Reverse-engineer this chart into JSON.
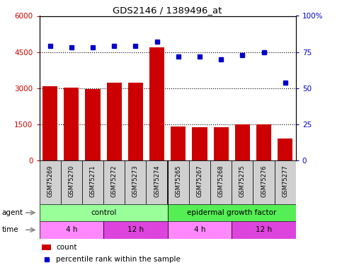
{
  "title": "GDS2146 / 1389496_at",
  "samples": [
    "GSM75269",
    "GSM75270",
    "GSM75271",
    "GSM75272",
    "GSM75273",
    "GSM75274",
    "GSM75265",
    "GSM75267",
    "GSM75268",
    "GSM75275",
    "GSM75276",
    "GSM75277"
  ],
  "counts": [
    3080,
    3030,
    2960,
    3230,
    3240,
    4680,
    1420,
    1390,
    1380,
    1490,
    1490,
    920
  ],
  "percentiles": [
    79,
    78,
    78,
    79,
    79,
    82,
    72,
    72,
    70,
    73,
    75,
    54
  ],
  "ylim_left": [
    0,
    6000
  ],
  "ylim_right": [
    0,
    100
  ],
  "yticks_left": [
    0,
    1500,
    3000,
    4500,
    6000
  ],
  "yticks_right": [
    0,
    25,
    50,
    75,
    100
  ],
  "bar_color": "#cc0000",
  "dot_color": "#0000cc",
  "agent_row": [
    {
      "label": "control",
      "start": 0,
      "end": 6,
      "color": "#99ff99"
    },
    {
      "label": "epidermal growth factor",
      "start": 6,
      "end": 12,
      "color": "#55ee55"
    }
  ],
  "time_row": [
    {
      "label": "4 h",
      "start": 0,
      "end": 3,
      "color": "#ff88ff"
    },
    {
      "label": "12 h",
      "start": 3,
      "end": 6,
      "color": "#dd44dd"
    },
    {
      "label": "4 h",
      "start": 6,
      "end": 9,
      "color": "#ff88ff"
    },
    {
      "label": "12 h",
      "start": 9,
      "end": 12,
      "color": "#dd44dd"
    }
  ],
  "tick_label_color_left": "#cc0000",
  "tick_label_color_right": "#0000cc",
  "agent_label": "agent",
  "time_label": "time",
  "background_color": "#ffffff",
  "sample_bg": "#d0d0d0",
  "group_divider_col": 5
}
